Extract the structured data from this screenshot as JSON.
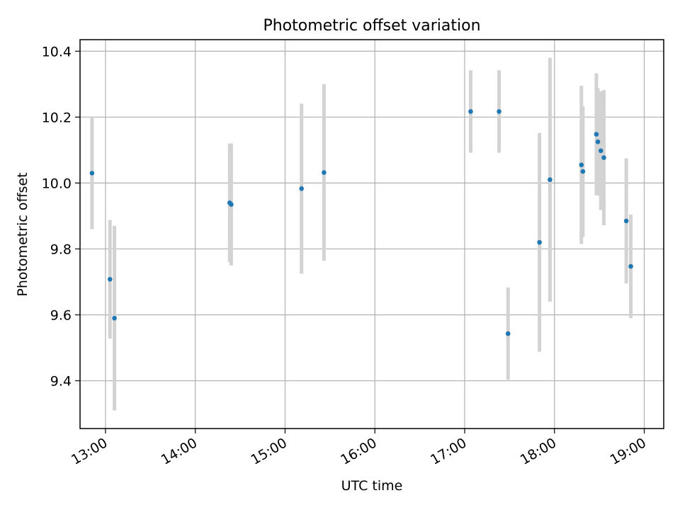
{
  "chart_data": {
    "type": "scatter",
    "title": "Photometric offset variation",
    "xlabel": "UTC time",
    "ylabel": "Photometric offset",
    "x_unit": "UTC time of day (HH:MM)",
    "xlim": [
      "12:43",
      "19:13"
    ],
    "ylim": [
      9.255,
      10.435
    ],
    "xticks": [
      "13:00",
      "14:00",
      "15:00",
      "16:00",
      "17:00",
      "18:00",
      "19:00"
    ],
    "yticks": [
      9.4,
      9.6,
      9.8,
      10.0,
      10.2,
      10.4
    ],
    "ytick_labels": [
      "9.4",
      "9.6",
      "9.8",
      "10.0",
      "10.2",
      "10.4"
    ],
    "grid": true,
    "legend": null,
    "colors": {
      "points": "#1f77b4",
      "errorbars": "#d3d3d3",
      "grid": "#b0b0b0"
    },
    "series": [
      {
        "points": [
          {
            "x": "12:51",
            "y": 10.03,
            "yerr": 0.17
          },
          {
            "x": "13:03",
            "y": 9.708,
            "yerr": 0.18
          },
          {
            "x": "13:06",
            "y": 9.59,
            "yerr": 0.28
          },
          {
            "x": "14:23",
            "y": 9.94,
            "yerr": 0.18
          },
          {
            "x": "14:24",
            "y": 9.935,
            "yerr": 0.185
          },
          {
            "x": "15:11",
            "y": 9.983,
            "yerr": 0.258
          },
          {
            "x": "15:26",
            "y": 10.032,
            "yerr": 0.268
          },
          {
            "x": "17:04",
            "y": 10.217,
            "yerr": 0.125
          },
          {
            "x": "17:23",
            "y": 10.217,
            "yerr": 0.125
          },
          {
            "x": "17:29",
            "y": 9.543,
            "yerr": 0.14
          },
          {
            "x": "17:50",
            "y": 9.82,
            "yerr": 0.332
          },
          {
            "x": "17:57",
            "y": 10.01,
            "yerr": 0.37
          },
          {
            "x": "18:18",
            "y": 10.055,
            "yerr": 0.24
          },
          {
            "x": "18:19",
            "y": 10.035,
            "yerr": 0.198
          },
          {
            "x": "18:28",
            "y": 10.148,
            "yerr": 0.185
          },
          {
            "x": "18:29",
            "y": 10.125,
            "yerr": 0.163
          },
          {
            "x": "18:31",
            "y": 10.098,
            "yerr": 0.18
          },
          {
            "x": "18:33",
            "y": 10.077,
            "yerr": 0.205
          },
          {
            "x": "18:48",
            "y": 9.885,
            "yerr": 0.19
          },
          {
            "x": "18:51",
            "y": 9.747,
            "yerr": 0.157
          }
        ]
      }
    ]
  }
}
